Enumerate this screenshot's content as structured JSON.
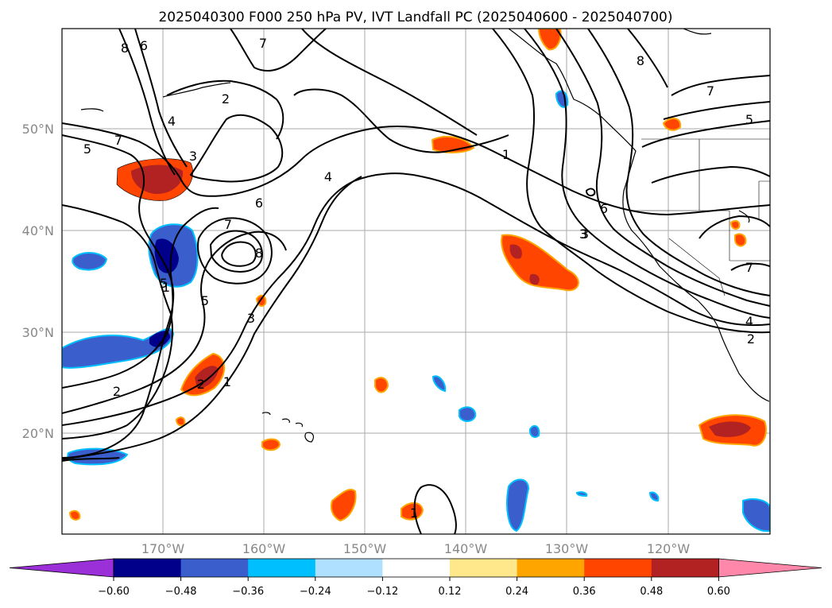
{
  "title": "2025040300 F000 250 hPa PV, IVT Landfall PC (2025040600 - 2025040700)",
  "lat_labels": [
    "50°N",
    "40°N",
    "30°N",
    "20°N"
  ],
  "lon_labels": [
    "170°W",
    "160°W",
    "150°W",
    "140°W",
    "130°W",
    "120°W"
  ],
  "colorbar": {
    "ticks": [
      "−0.60",
      "−0.48",
      "−0.36",
      "−0.24",
      "−0.12",
      "0.12",
      "0.24",
      "0.36",
      "0.48",
      "0.60"
    ],
    "colors": [
      "#9b30d9",
      "#00008b",
      "#3a5fcd",
      "#00bfff",
      "#b0e0ff",
      "#ffffff",
      "#ffe88c",
      "#ffa500",
      "#ff4500",
      "#b22222",
      "#ff88aa"
    ]
  },
  "contour_labels": [
    "8",
    "6",
    "7",
    "4",
    "2",
    "3",
    "5",
    "7",
    "5",
    "6",
    "7",
    "8",
    "4",
    "1",
    "2",
    "1",
    "2",
    "3",
    "5",
    "1",
    "3",
    "6",
    "8",
    "7",
    "5",
    "4",
    "2",
    "7",
    "1",
    "3"
  ]
}
